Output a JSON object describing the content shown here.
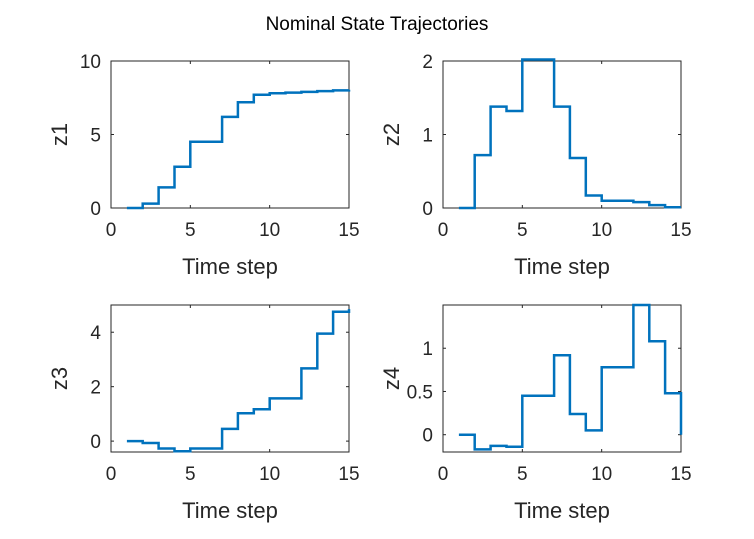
{
  "figure": {
    "title": "Nominal State Trajectories",
    "background": "#ffffff",
    "line_color": "#0072BD",
    "axis_color": "#262626"
  },
  "chart_data": [
    {
      "type": "line",
      "step": true,
      "title": "",
      "xlabel": "Time step",
      "ylabel": "z1",
      "xlim": [
        0,
        15
      ],
      "ylim": [
        0,
        10
      ],
      "xticks": [
        0,
        5,
        10,
        15
      ],
      "yticks": [
        0,
        5,
        10
      ],
      "grid": false,
      "x": [
        1,
        2,
        3,
        4,
        5,
        6,
        7,
        8,
        9,
        10,
        11,
        12,
        13,
        14,
        15
      ],
      "series": [
        {
          "values": [
            0,
            0.3,
            1.4,
            2.8,
            4.5,
            4.5,
            6.2,
            7.2,
            7.7,
            7.8,
            7.85,
            7.9,
            7.95,
            8.0,
            8.05
          ]
        }
      ]
    },
    {
      "type": "line",
      "step": true,
      "title": "",
      "xlabel": "Time step",
      "ylabel": "z2",
      "xlim": [
        0,
        15
      ],
      "ylim": [
        0,
        2
      ],
      "xticks": [
        0,
        5,
        10,
        15
      ],
      "yticks": [
        0,
        1,
        2
      ],
      "grid": false,
      "x": [
        1,
        2,
        3,
        4,
        5,
        6,
        7,
        8,
        9,
        10,
        11,
        12,
        13,
        14,
        15
      ],
      "series": [
        {
          "values": [
            0,
            0.72,
            1.38,
            1.32,
            2.02,
            2.02,
            1.38,
            0.68,
            0.17,
            0.1,
            0.1,
            0.08,
            0.04,
            0.01,
            0.01
          ]
        }
      ]
    },
    {
      "type": "line",
      "step": true,
      "title": "",
      "xlabel": "Time step",
      "ylabel": "z3",
      "xlim": [
        0,
        15
      ],
      "ylim": [
        -0.4,
        5
      ],
      "xticks": [
        0,
        5,
        10,
        15
      ],
      "yticks": [
        0,
        2,
        4
      ],
      "grid": false,
      "x": [
        1,
        2,
        3,
        4,
        5,
        6,
        7,
        8,
        9,
        10,
        11,
        12,
        13,
        14,
        15
      ],
      "series": [
        {
          "values": [
            0,
            -0.07,
            -0.27,
            -0.37,
            -0.27,
            -0.27,
            0.45,
            1.02,
            1.17,
            1.57,
            1.57,
            2.67,
            3.95,
            4.75,
            4.85
          ]
        }
      ]
    },
    {
      "type": "line",
      "step": true,
      "title": "",
      "xlabel": "Time step",
      "ylabel": "z4",
      "xlim": [
        0,
        15
      ],
      "ylim": [
        -0.2,
        1.5
      ],
      "xticks": [
        0,
        5,
        10,
        15
      ],
      "yticks": [
        0,
        0.5,
        1
      ],
      "ytick_labels": [
        "0",
        "0.5",
        "1"
      ],
      "grid": false,
      "x": [
        1,
        2,
        3,
        4,
        5,
        6,
        7,
        8,
        9,
        10,
        11,
        12,
        13,
        14,
        15
      ],
      "series": [
        {
          "values": [
            0,
            -0.17,
            -0.13,
            -0.14,
            0.45,
            0.45,
            0.92,
            0.24,
            0.05,
            0.78,
            0.78,
            1.5,
            1.08,
            0.48,
            0.0
          ]
        }
      ]
    }
  ]
}
